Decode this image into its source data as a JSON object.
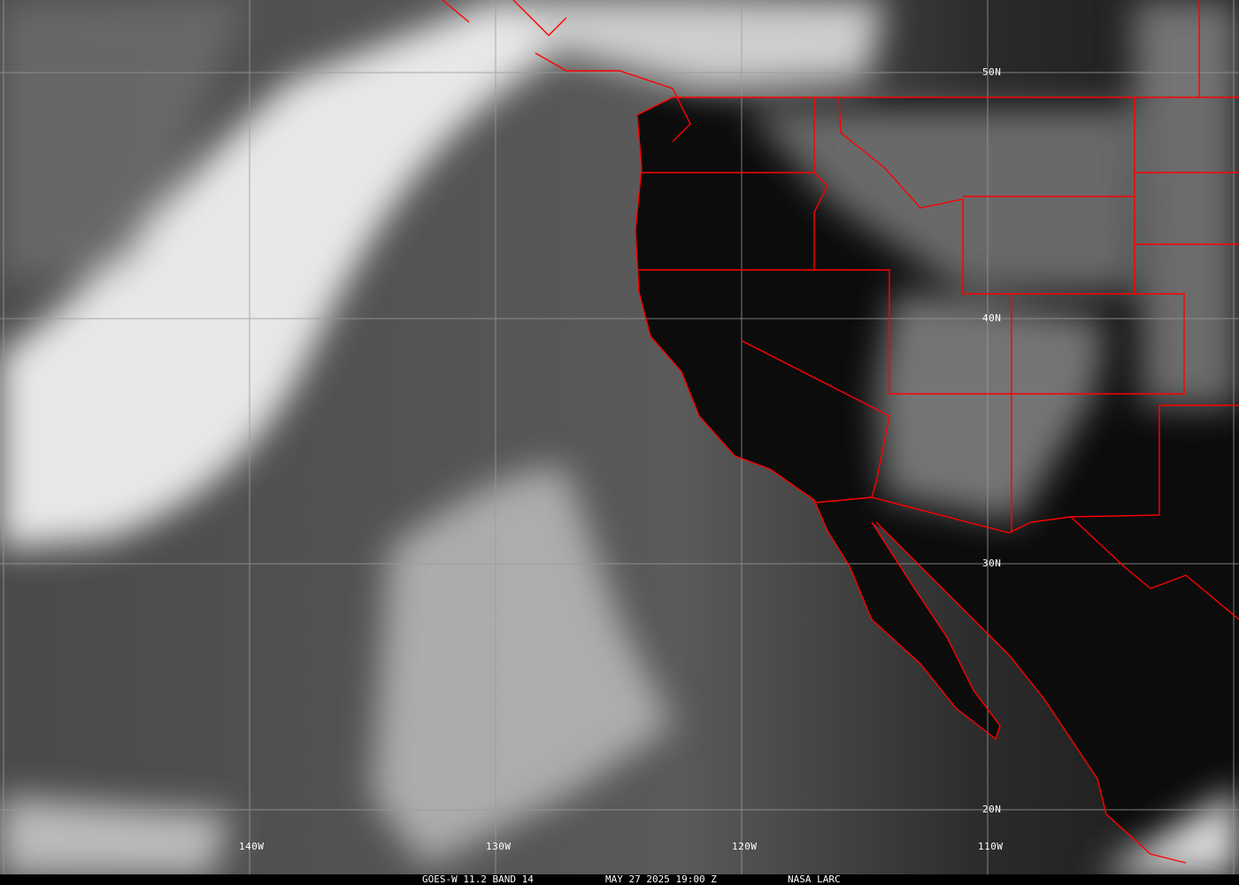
{
  "image": {
    "type": "satellite infrared image with map overlay",
    "caption": {
      "satellite_band": "GOES-W 11.2 BAND 14",
      "datetime": "MAY 27 2025 19:00 Z",
      "source": "NASA LARC"
    },
    "latitude_labels": [
      "50N",
      "40N",
      "30N",
      "20N"
    ],
    "longitude_labels": [
      "140W",
      "130W",
      "120W",
      "110W"
    ],
    "colors": {
      "borders": "#ff0000",
      "grid": "#9a9a9a",
      "caption_bg": "#000000",
      "caption_text": "#ffffff"
    }
  }
}
